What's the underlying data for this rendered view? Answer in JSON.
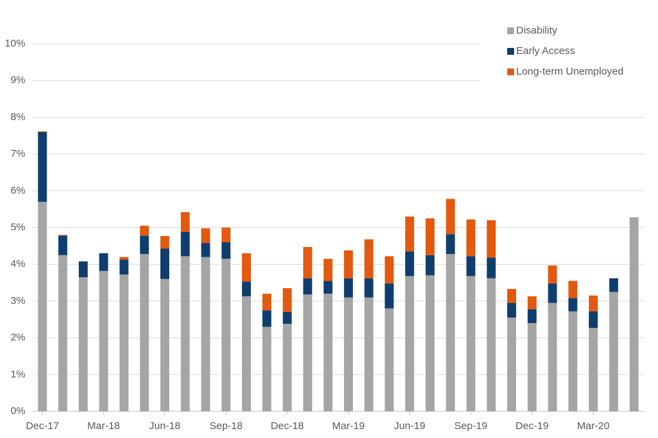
{
  "chart_data": {
    "type": "stacked_bar",
    "categories": [
      "Dec-17",
      null,
      null,
      "Mar-18",
      null,
      null,
      "Jun-18",
      null,
      null,
      "Sep-18",
      null,
      null,
      "Dec-18",
      null,
      null,
      "Mar-19",
      null,
      null,
      "Jun-19",
      null,
      null,
      "Sep-19",
      null,
      null,
      "Dec-19",
      null,
      null,
      "Mar-20",
      null,
      null
    ],
    "series": [
      {
        "name": "Disability",
        "color": "#a5a5a5",
        "values": [
          5.7,
          4.25,
          3.65,
          3.82,
          3.72,
          4.28,
          3.6,
          4.22,
          4.2,
          4.15,
          3.13,
          2.3,
          2.38,
          3.18,
          3.2,
          3.1,
          3.1,
          2.8,
          3.68,
          3.7,
          4.28,
          3.68,
          3.62,
          2.55,
          2.4,
          2.95,
          2.72,
          2.27,
          3.25,
          5.28
        ]
      },
      {
        "name": "Early Access",
        "color": "#0f3e6e",
        "values": [
          1.9,
          0.53,
          0.43,
          0.48,
          0.41,
          0.5,
          0.83,
          0.66,
          0.38,
          0.45,
          0.4,
          0.45,
          0.32,
          0.44,
          0.35,
          0.52,
          0.52,
          0.68,
          0.67,
          0.55,
          0.54,
          0.54,
          0.56,
          0.4,
          0.38,
          0.53,
          0.36,
          0.45,
          0.37,
          0
        ]
      },
      {
        "name": "Long-term Unemployed",
        "color": "#e2590f",
        "values": [
          0.02,
          0.02,
          0,
          0,
          0.07,
          0.27,
          0.34,
          0.54,
          0.4,
          0.4,
          0.77,
          0.45,
          0.65,
          0.85,
          0.6,
          0.76,
          1.06,
          0.74,
          0.95,
          1.0,
          0.96,
          1.0,
          1.02,
          0.38,
          0.35,
          0.49,
          0.47,
          0.43,
          0,
          0
        ]
      }
    ],
    "ylim": [
      0,
      10
    ],
    "yticks": [
      {
        "value": 0,
        "label": "0%"
      },
      {
        "value": 1,
        "label": "1%"
      },
      {
        "value": 2,
        "label": "2%"
      },
      {
        "value": 3,
        "label": "3%"
      },
      {
        "value": 4,
        "label": "4%"
      },
      {
        "value": 5,
        "label": "5%"
      },
      {
        "value": 6,
        "label": "6%"
      },
      {
        "value": 7,
        "label": "7%"
      },
      {
        "value": 8,
        "label": "8%"
      },
      {
        "value": 9,
        "label": "9%"
      },
      {
        "value": 10,
        "label": "10%"
      }
    ],
    "grid": true
  }
}
